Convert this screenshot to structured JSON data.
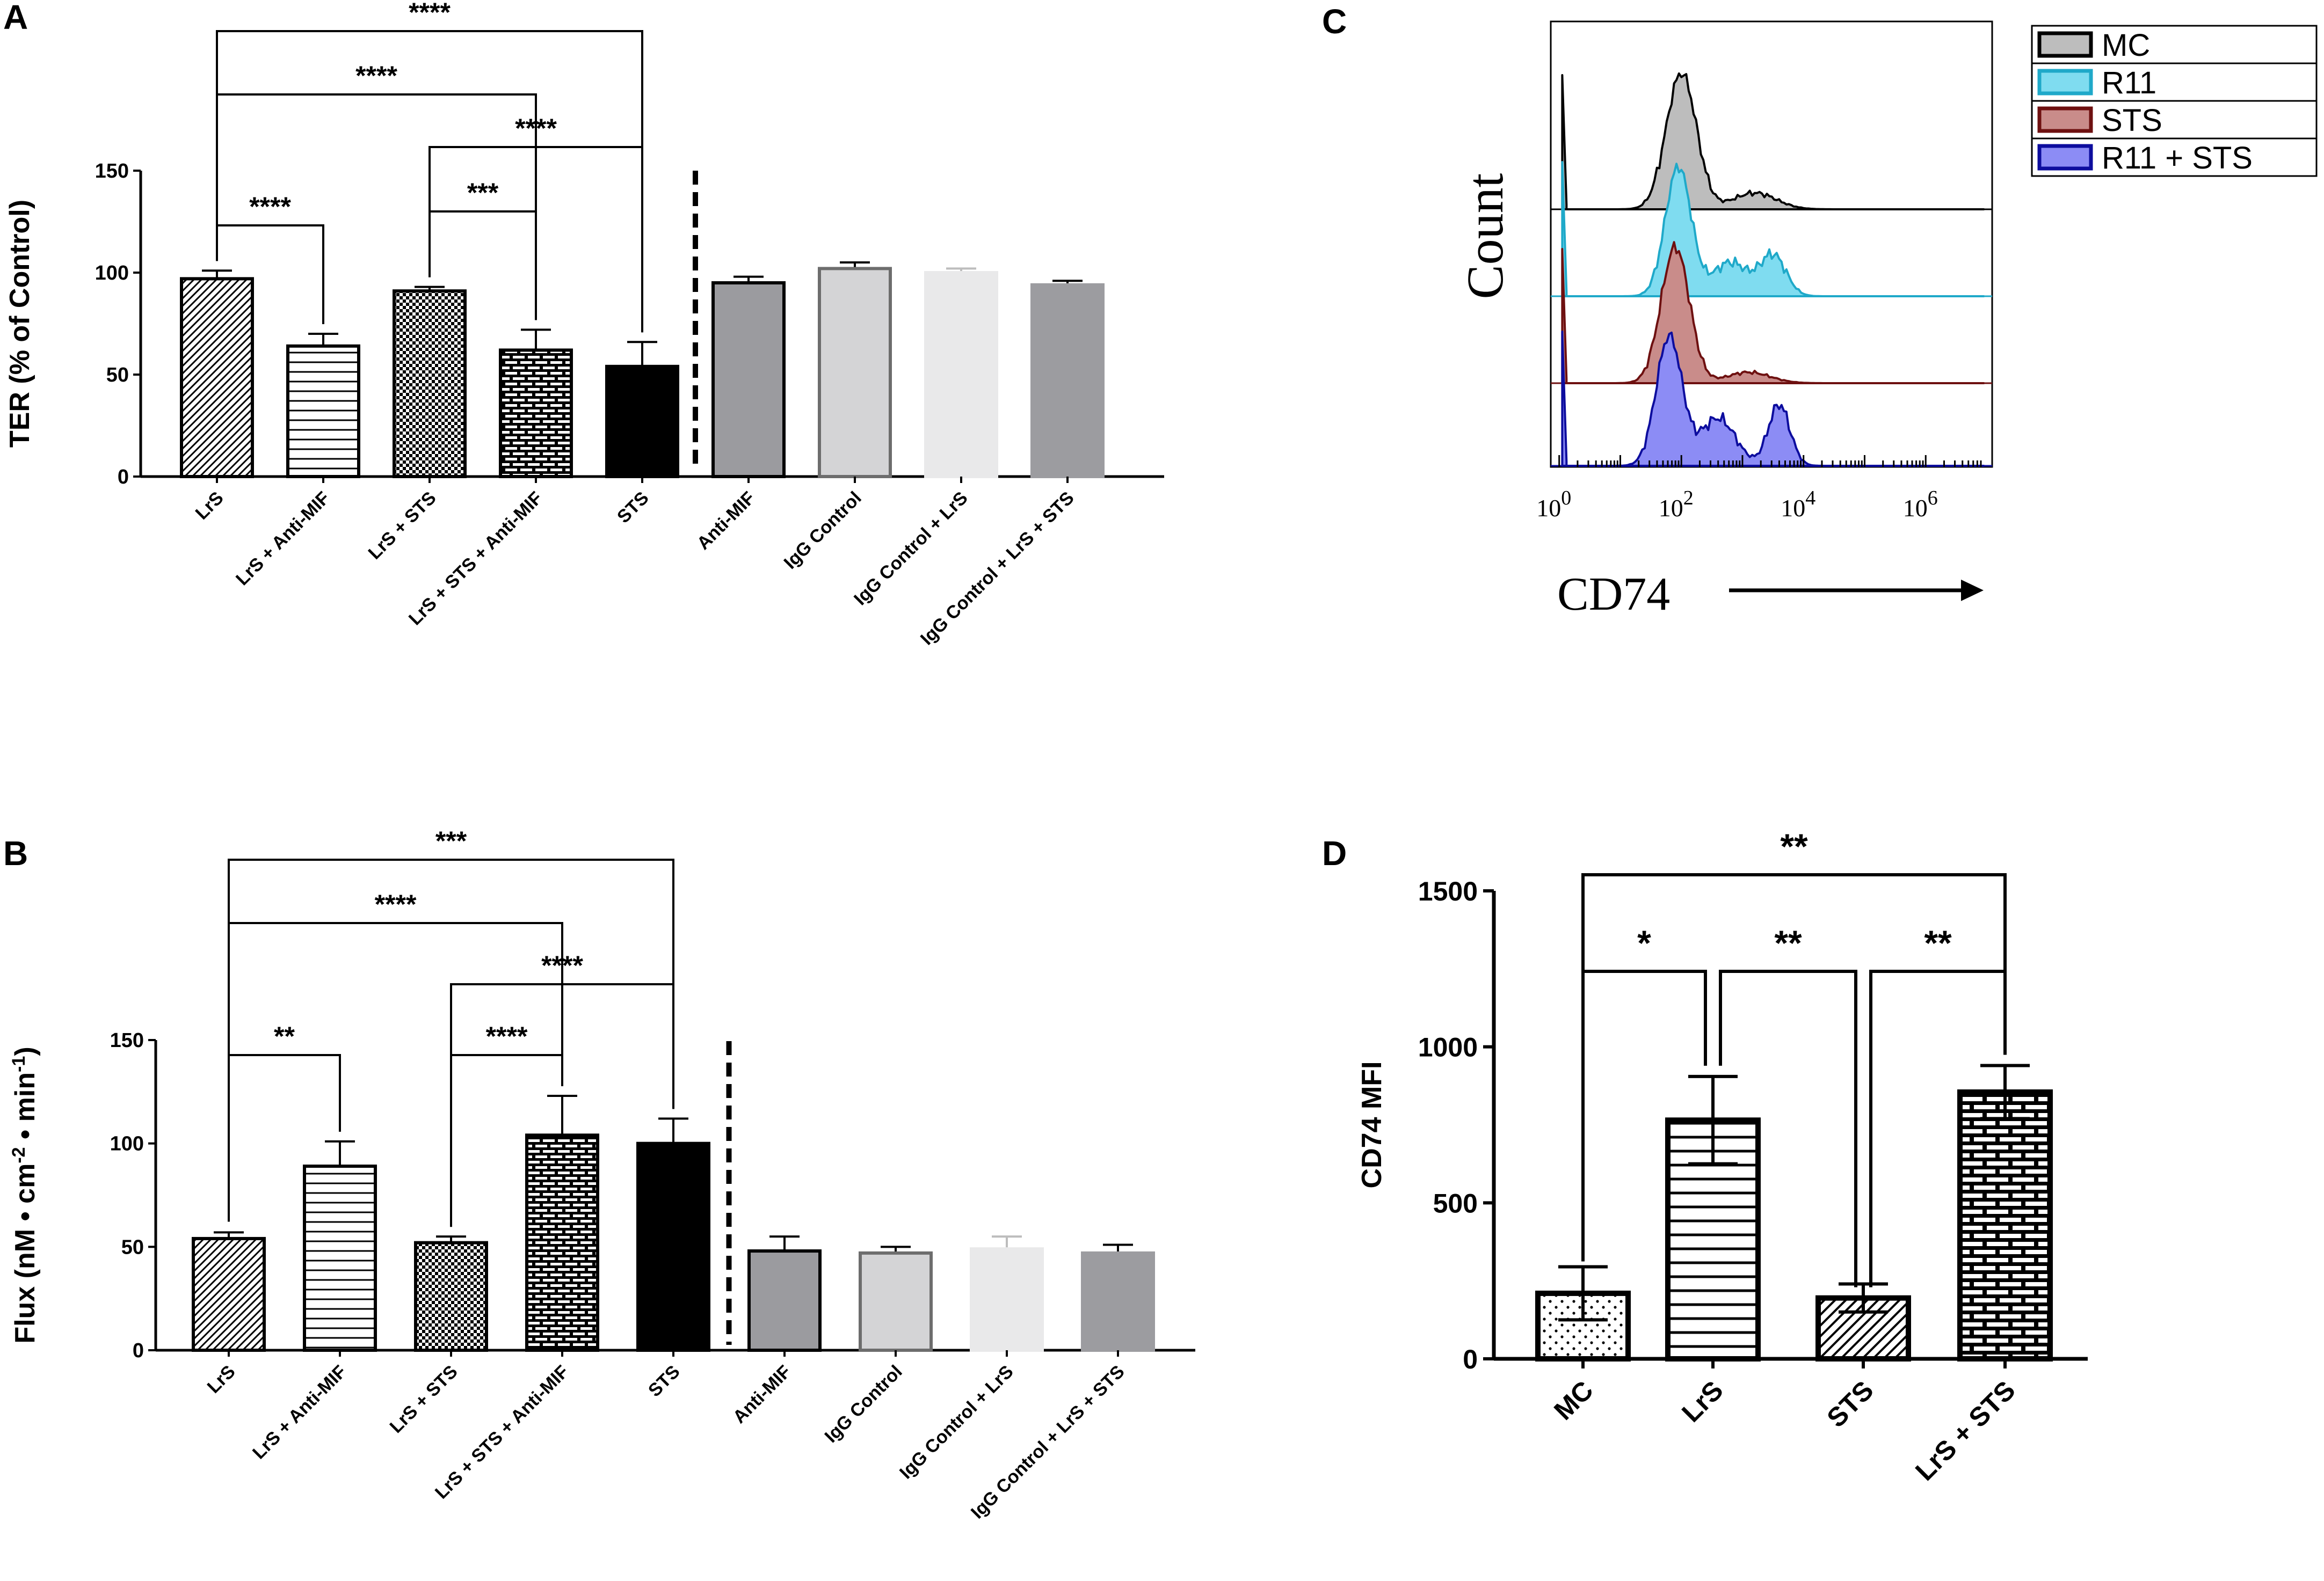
{
  "panels": {
    "A": "A",
    "B": "B",
    "C": "C",
    "D": "D"
  },
  "chart_data": [
    {
      "panel": "A",
      "type": "bar",
      "ylabel": "TER (% of Control)",
      "ylim": [
        0,
        150
      ],
      "yticks": [
        0,
        50,
        100,
        150
      ],
      "categories": [
        "LrS",
        "LrS + Anti-MIF",
        "LrS + STS",
        "LrS + STS + Anti-MIF",
        "STS",
        "Anti-MIF",
        "IgG Control",
        "IgG Control + LrS",
        "IgG Control + LrS + STS"
      ],
      "values": [
        97,
        64,
        91,
        62,
        54,
        95,
        102,
        100,
        94
      ],
      "errors": [
        4,
        6,
        2,
        10,
        12,
        3,
        3,
        2,
        2
      ],
      "comparisons": [
        {
          "a": 0,
          "b": 1,
          "label": "****"
        },
        {
          "a": 2,
          "b": 3,
          "label": "***"
        },
        {
          "a": 2,
          "b": 4,
          "label": "****"
        },
        {
          "a": 0,
          "b": 3,
          "label": "****"
        },
        {
          "a": 0,
          "b": 4,
          "label": "****"
        }
      ]
    },
    {
      "panel": "B",
      "type": "bar",
      "ylabel": "Flux (nM • cm-2 • min-1)",
      "ylabel_parts": {
        "pre": "Flux  (nM • cm",
        "sup1": "-2",
        "mid": " • min",
        "sup2": "-1",
        "post": ")"
      },
      "ylim": [
        0,
        150
      ],
      "yticks": [
        0,
        50,
        100,
        150
      ],
      "categories": [
        "LrS",
        "LrS + Anti-MIF",
        "LrS + STS",
        "LrS + STS + Anti-MIF",
        "STS",
        "Anti-MIF",
        "IgG Control",
        "IgG Control + LrS",
        "IgG Control + LrS + STS"
      ],
      "values": [
        54,
        89,
        52,
        104,
        100,
        48,
        47,
        49,
        47
      ],
      "errors": [
        3,
        12,
        3,
        19,
        12,
        7,
        3,
        6,
        4
      ],
      "comparisons": [
        {
          "a": 0,
          "b": 1,
          "label": "**"
        },
        {
          "a": 2,
          "b": 3,
          "label": "****"
        },
        {
          "a": 2,
          "b": 4,
          "label": "****"
        },
        {
          "a": 0,
          "b": 3,
          "label": "****"
        },
        {
          "a": 0,
          "b": 4,
          "label": "***"
        }
      ]
    },
    {
      "panel": "C",
      "type": "area",
      "title": "",
      "xlabel": "CD74",
      "ylabel": "Count",
      "xscale": "log",
      "xticks": [
        {
          "base": "10",
          "exp": "0"
        },
        {
          "base": "10",
          "exp": "2"
        },
        {
          "base": "10",
          "exp": "4"
        },
        {
          "base": "10",
          "exp": "6"
        }
      ],
      "series": [
        {
          "name": "MC",
          "color": "#bdbdbd",
          "edge": "#000000",
          "peaks": [
            {
              "x": 2.0,
              "h": 1.0,
              "w": 0.35
            },
            {
              "x": 3.2,
              "h": 0.12,
              "w": 0.5
            }
          ]
        },
        {
          "name": "R11",
          "color": "#7fdcf0",
          "edge": "#1fa9c9",
          "peaks": [
            {
              "x": 1.95,
              "h": 0.95,
              "w": 0.3
            },
            {
              "x": 3.5,
              "h": 0.3,
              "w": 0.3
            },
            {
              "x": 2.8,
              "h": 0.25,
              "w": 0.4
            }
          ]
        },
        {
          "name": "STS",
          "color": "#c98c8a",
          "edge": "#6e1010",
          "peaks": [
            {
              "x": 1.9,
              "h": 1.0,
              "w": 0.33
            },
            {
              "x": 3.1,
              "h": 0.08,
              "w": 0.5
            }
          ]
        },
        {
          "name": "R11 + STS",
          "color": "#8c8cf5",
          "edge": "#0d0d9e",
          "peaks": [
            {
              "x": 1.8,
              "h": 0.95,
              "w": 0.3
            },
            {
              "x": 3.6,
              "h": 0.45,
              "w": 0.25
            },
            {
              "x": 2.6,
              "h": 0.35,
              "w": 0.4
            }
          ]
        }
      ]
    },
    {
      "panel": "D",
      "type": "bar",
      "ylabel": "CD74 MFI",
      "ylim": [
        0,
        1500
      ],
      "yticks": [
        0,
        500,
        1000,
        1500
      ],
      "categories": [
        "MC",
        "LrS",
        "STS",
        "LrS + STS"
      ],
      "values": [
        210,
        765,
        195,
        855
      ],
      "errors": [
        85,
        140,
        45,
        85
      ],
      "comparisons": [
        {
          "a": 0,
          "b": 1,
          "label": "*"
        },
        {
          "a": 1,
          "b": 2,
          "label": "**"
        },
        {
          "a": 2,
          "b": 3,
          "label": "**"
        },
        {
          "a": 0,
          "b": 3,
          "label": "**"
        }
      ]
    }
  ]
}
